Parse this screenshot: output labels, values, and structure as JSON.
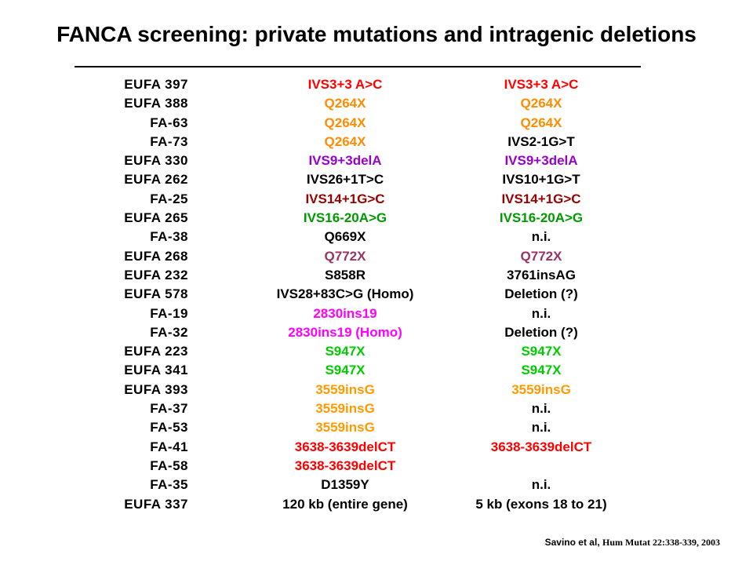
{
  "title": "FANCA screening: private mutations and intragenic deletions",
  "colors": {
    "black": "#000000",
    "red": "#ff0000",
    "orange": "#ff8c00",
    "purple": "#9900cc",
    "darkred": "#990000",
    "green": "#009900",
    "plum": "#993366",
    "magenta": "#ff00ff",
    "lime": "#00cc00",
    "gold": "#ff9900"
  },
  "rows": [
    {
      "id": "EUFA 397",
      "m1": "IVS3+3 A>C",
      "c1": "#ff0000",
      "m2": "IVS3+3 A>C",
      "c2": "#ff0000"
    },
    {
      "id": "EUFA 388",
      "m1": "Q264X",
      "c1": "#ff8c00",
      "m2": "Q264X",
      "c2": "#ff8c00"
    },
    {
      "id": "FA-63",
      "m1": "Q264X",
      "c1": "#ff8c00",
      "m2": "Q264X",
      "c2": "#ff8c00"
    },
    {
      "id": "FA-73",
      "m1": "Q264X",
      "c1": "#ff8c00",
      "m2": "IVS2-1G>T",
      "c2": "#000000"
    },
    {
      "id": "EUFA 330",
      "m1": "IVS9+3delA",
      "c1": "#9900cc",
      "m2": "IVS9+3delA",
      "c2": "#9900cc"
    },
    {
      "id": "EUFA 262",
      "m1": "IVS26+1T>C",
      "c1": "#000000",
      "m2": "IVS10+1G>T",
      "c2": "#000000"
    },
    {
      "id": "FA-25",
      "m1": "IVS14+1G>C",
      "c1": "#990000",
      "m2": "IVS14+1G>C",
      "c2": "#990000"
    },
    {
      "id": "EUFA 265",
      "m1": "IVS16-20A>G",
      "c1": "#009900",
      "m2": "IVS16-20A>G",
      "c2": "#009900"
    },
    {
      "id": "FA-38",
      "m1": "Q669X",
      "c1": "#000000",
      "m2": "n.i.",
      "c2": "#000000"
    },
    {
      "id": "EUFA 268",
      "m1": "Q772X",
      "c1": "#993366",
      "m2": "Q772X",
      "c2": "#993366"
    },
    {
      "id": "EUFA 232",
      "m1": "S858R",
      "c1": "#000000",
      "m2": "3761insAG",
      "c2": "#000000"
    },
    {
      "id": "EUFA 578",
      "m1": "IVS28+83C>G (Homo)",
      "c1": "#000000",
      "m2": "Deletion (?)",
      "c2": "#000000"
    },
    {
      "id": "FA-19",
      "m1": "2830ins19",
      "c1": "#ff00ff",
      "m2": "n.i.",
      "c2": "#000000"
    },
    {
      "id": "FA-32",
      "m1": "2830ins19 (Homo)",
      "c1": "#ff00ff",
      "m2": "Deletion (?)",
      "c2": "#000000"
    },
    {
      "id": "EUFA 223",
      "m1": "S947X",
      "c1": "#00cc00",
      "m2": "S947X",
      "c2": "#00cc00"
    },
    {
      "id": "EUFA 341",
      "m1": "S947X",
      "c1": "#00cc00",
      "m2": "S947X",
      "c2": "#00cc00"
    },
    {
      "id": "EUFA 393",
      "m1": "3559insG",
      "c1": "#ff9900",
      "m2": "3559insG",
      "c2": "#ff9900"
    },
    {
      "id": "FA-37",
      "m1": "3559insG",
      "c1": "#ff9900",
      "m2": "n.i.",
      "c2": "#000000"
    },
    {
      "id": "FA-53",
      "m1": "3559insG",
      "c1": "#ff9900",
      "m2": "n.i.",
      "c2": "#000000"
    },
    {
      "id": "FA-41",
      "m1": "3638-3639delCT",
      "c1": "#ff0000",
      "m2": "3638-3639delCT",
      "c2": "#ff0000"
    },
    {
      "id": "FA-58",
      "m1": "3638-3639delCT",
      "c1": "#ff0000",
      "m2": "",
      "c2": "#000000"
    },
    {
      "id": "FA-35",
      "m1": "D1359Y",
      "c1": "#000000",
      "m2": "n.i.",
      "c2": "#000000"
    },
    {
      "id": "EUFA 337",
      "m1": "120 kb (entire gene)",
      "c1": "#000000",
      "m2": "5 kb (exons 18 to 21)",
      "c2": "#000000"
    }
  ],
  "citation": {
    "authors": "Savino et al,",
    "journal": "Hum Mutat 22:338-339, 2003"
  }
}
